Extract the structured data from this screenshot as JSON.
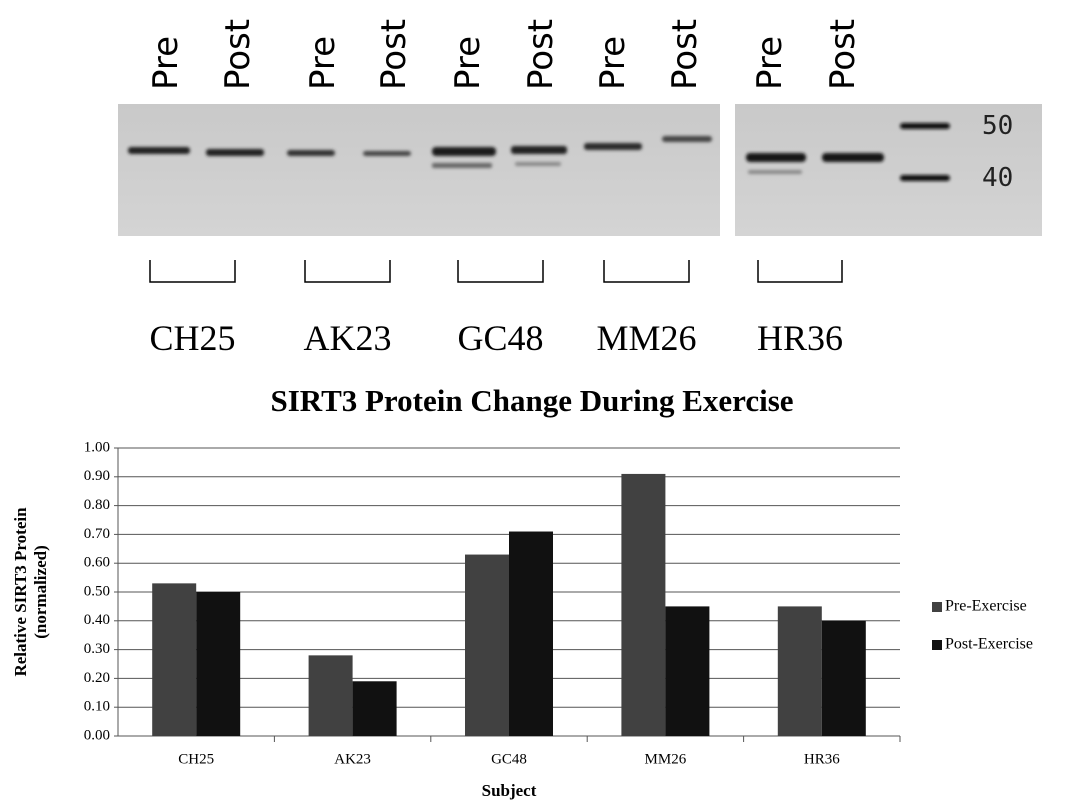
{
  "blot": {
    "lane_labels": [
      "Pre",
      "Post",
      "Pre",
      "Post",
      "Pre",
      "Post",
      "Pre",
      "Post",
      "Pre",
      "Post"
    ],
    "marker_labels": [
      50,
      40
    ],
    "subjects": [
      "CH25",
      "AK23",
      "GC48",
      "MM26",
      "HR36"
    ]
  },
  "chart_data": {
    "type": "bar",
    "title": "SIRT3 Protein Change During Exercise",
    "xlabel": "Subject",
    "ylabel": [
      "Relative SIRT3 Protein",
      "(normalized)"
    ],
    "categories": [
      "CH25",
      "AK23",
      "GC48",
      "MM26",
      "HR36"
    ],
    "series": [
      {
        "name": "Pre-Exercise",
        "color": "#414141",
        "values": [
          0.53,
          0.28,
          0.63,
          0.91,
          0.45
        ]
      },
      {
        "name": "Post-Exercise",
        "color": "#111111",
        "values": [
          0.5,
          0.19,
          0.71,
          0.45,
          0.4
        ]
      }
    ],
    "ylim": [
      0,
      1
    ],
    "yticks": [
      {
        "value": 0,
        "label": "0.00"
      },
      {
        "value": 0.1,
        "label": "0.10"
      },
      {
        "value": 0.2,
        "label": "0.20"
      },
      {
        "value": 0.3,
        "label": "0.30"
      },
      {
        "value": 0.4,
        "label": "0.40"
      },
      {
        "value": 0.5,
        "label": "0.50"
      },
      {
        "value": 0.6,
        "label": "0.60"
      },
      {
        "value": 0.7,
        "label": "0.70"
      },
      {
        "value": 0.8,
        "label": "0.80"
      },
      {
        "value": 0.9,
        "label": "0.90"
      },
      {
        "value": 1,
        "label": "1.00"
      }
    ],
    "grid": true,
    "legend": "right"
  }
}
